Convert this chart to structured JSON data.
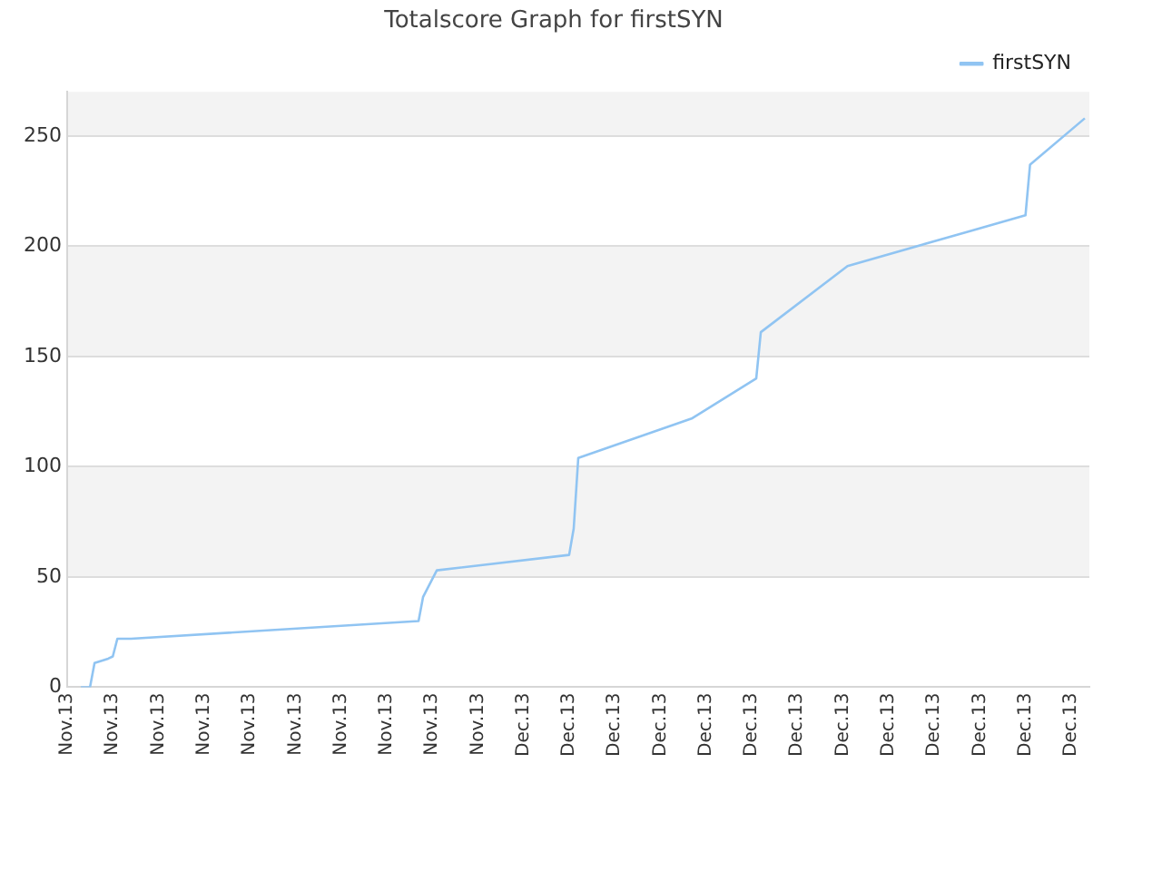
{
  "chart_data": {
    "type": "line",
    "title": "Totalscore Graph for firstSYN",
    "categories": [
      "Nov.13",
      null,
      null,
      null,
      null,
      null,
      null,
      null,
      null,
      null,
      "Nov.13",
      null,
      null,
      null,
      null,
      null,
      null,
      null,
      null,
      null,
      "Nov.13",
      null,
      null,
      null,
      null,
      null,
      null,
      null,
      null,
      null,
      "Nov.13",
      null,
      null,
      null,
      null,
      null,
      null,
      null,
      null,
      null,
      "Nov.13",
      null,
      null,
      null,
      null,
      null,
      null,
      null,
      null,
      null,
      "Nov.13",
      null,
      null,
      null,
      null,
      null,
      null,
      null,
      null,
      null,
      "Nov.13",
      null,
      null,
      null,
      null,
      null,
      null,
      null,
      null,
      null,
      "Nov.13",
      null,
      null,
      null,
      null,
      null,
      null,
      null,
      null,
      null,
      "Nov.13",
      null,
      null,
      null,
      null,
      null,
      null,
      null,
      null,
      null,
      "Nov.13",
      null,
      null,
      null,
      null,
      null,
      null,
      null,
      null,
      null,
      "Dec.13",
      null,
      null,
      null,
      null,
      null,
      null,
      null,
      null,
      null,
      "Dec.13",
      null,
      null,
      null,
      null,
      null,
      null,
      null,
      null,
      null,
      "Dec.13",
      null,
      null,
      null,
      null,
      null,
      null,
      null,
      null,
      null,
      "Dec.13",
      null,
      null,
      null,
      null,
      null,
      null,
      null,
      null,
      null,
      "Dec.13",
      null,
      null,
      null,
      null,
      null,
      null,
      null,
      null,
      null,
      "Dec.13",
      null,
      null,
      null,
      null,
      null,
      null,
      null,
      null,
      null,
      "Dec.13",
      null,
      null,
      null,
      null,
      null,
      null,
      null,
      null,
      null,
      "Dec.13",
      null,
      null,
      null,
      null,
      null,
      null,
      null,
      null,
      null,
      "Dec.13",
      null,
      null,
      null,
      null,
      null,
      null,
      null,
      null,
      null,
      "Dec.13",
      null,
      null,
      null,
      null,
      null,
      null,
      null,
      null,
      null,
      "Dec.13",
      null,
      null,
      null,
      null,
      null,
      null,
      null,
      null,
      null,
      "Dec.13",
      null,
      null,
      null,
      null,
      null,
      null,
      null,
      null,
      null,
      "Dec.13",
      null,
      null,
      null,
      null
    ],
    "ylim": [
      0,
      270
    ],
    "yticks": [
      0,
      50,
      100,
      150,
      200,
      250
    ],
    "series": [
      {
        "name": "firstSYN",
        "color": "#90c4f2",
        "values": [
          null,
          null,
          null,
          0,
          null,
          0,
          11,
          null,
          null,
          13,
          14,
          22,
          null,
          null,
          22,
          null,
          null,
          null,
          null,
          null,
          null,
          null,
          null,
          null,
          null,
          null,
          null,
          null,
          null,
          null,
          null,
          null,
          null,
          null,
          null,
          null,
          null,
          null,
          null,
          null,
          null,
          null,
          null,
          null,
          null,
          null,
          null,
          null,
          null,
          null,
          null,
          null,
          null,
          null,
          null,
          null,
          null,
          null,
          null,
          null,
          null,
          null,
          null,
          null,
          null,
          null,
          null,
          null,
          null,
          null,
          null,
          null,
          null,
          null,
          null,
          null,
          null,
          30,
          41,
          null,
          null,
          53,
          null,
          null,
          null,
          null,
          null,
          null,
          null,
          null,
          null,
          null,
          null,
          null,
          null,
          null,
          null,
          null,
          null,
          null,
          null,
          null,
          null,
          null,
          null,
          null,
          null,
          null,
          null,
          null,
          60,
          72,
          104,
          null,
          null,
          null,
          null,
          null,
          null,
          null,
          null,
          null,
          null,
          null,
          null,
          null,
          null,
          null,
          null,
          null,
          null,
          null,
          null,
          null,
          null,
          null,
          null,
          122,
          null,
          null,
          null,
          null,
          null,
          null,
          null,
          null,
          null,
          null,
          null,
          null,
          null,
          140,
          161,
          null,
          null,
          null,
          null,
          null,
          null,
          null,
          null,
          null,
          null,
          null,
          null,
          null,
          null,
          null,
          null,
          null,
          null,
          191,
          null,
          null,
          null,
          null,
          null,
          null,
          null,
          null,
          null,
          null,
          null,
          null,
          null,
          null,
          null,
          null,
          null,
          null,
          null,
          null,
          null,
          null,
          null,
          null,
          null,
          null,
          null,
          null,
          null,
          null,
          null,
          null,
          null,
          null,
          null,
          null,
          null,
          null,
          214,
          237,
          null,
          null,
          null,
          null,
          null,
          null,
          null,
          null,
          null,
          null,
          null,
          258,
          null
        ]
      }
    ],
    "grid": "y",
    "legend": "top right",
    "marker": "none",
    "line_style": "solid"
  }
}
